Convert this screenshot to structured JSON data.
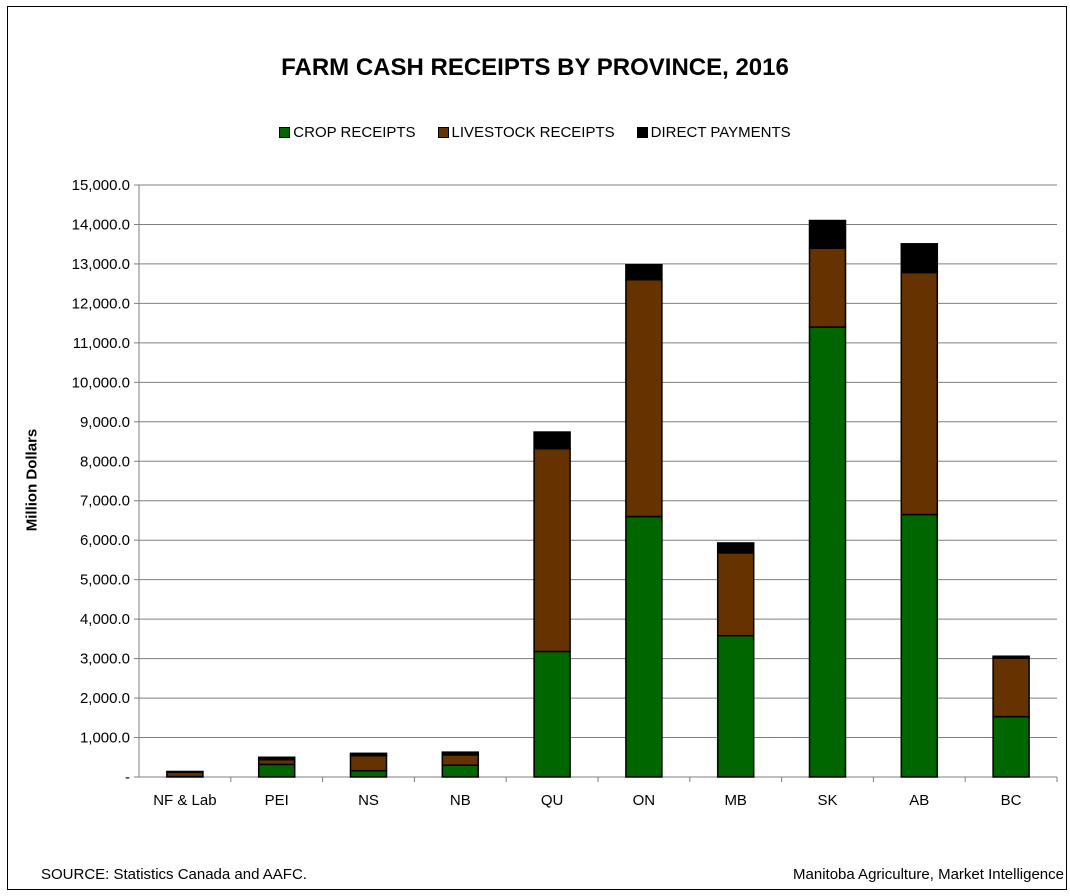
{
  "chart_data": {
    "type": "bar",
    "stacked": true,
    "title": "FARM CASH RECEIPTS BY PROVINCE, 2016",
    "ylabel": "Million Dollars",
    "xlabel": "",
    "ylim": [
      0,
      15000
    ],
    "ytick_step": 1000,
    "ytick_labels": [
      "-",
      "1,000.0",
      "2,000.0",
      "3,000.0",
      "4,000.0",
      "5,000.0",
      "6,000.0",
      "7,000.0",
      "8,000.0",
      "9,000.0",
      "10,000.0",
      "11,000.0",
      "12,000.0",
      "13,000.0",
      "14,000.0",
      "15,000.0"
    ],
    "categories": [
      "NF & Lab",
      "PEI",
      "NS",
      "NB",
      "QU",
      "ON",
      "MB",
      "SK",
      "AB",
      "BC"
    ],
    "grid": true,
    "legend_position": "top-center",
    "series": [
      {
        "name": "CROP RECEIPTS",
        "color": "#006600",
        "values": [
          10,
          320,
          160,
          300,
          3180,
          6600,
          3580,
          11400,
          6650,
          1530
        ]
      },
      {
        "name": "LIVESTOCK RECEIPTS",
        "color": "#663300",
        "values": [
          110,
          120,
          380,
          260,
          5140,
          6000,
          2100,
          2000,
          6130,
          1480
        ]
      },
      {
        "name": "DIRECT PAYMENTS",
        "color": "#000000",
        "values": [
          20,
          60,
          60,
          70,
          420,
          380,
          250,
          700,
          730,
          50
        ]
      }
    ]
  },
  "footer": {
    "source": "SOURCE:  Statistics Canada and AAFC.",
    "credit": "Manitoba Agriculture, Market Intelligence"
  }
}
